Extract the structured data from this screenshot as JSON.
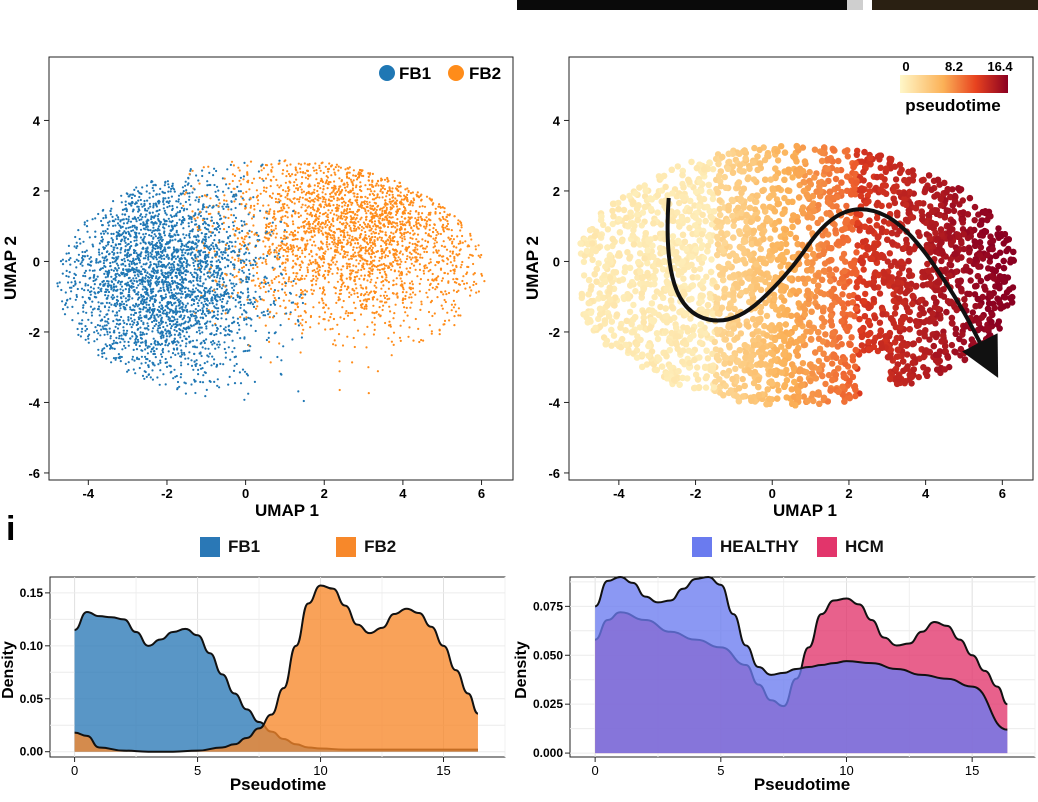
{
  "panel_label": "i",
  "chart_data": [
    {
      "id": "umap_clusters",
      "type": "scatter",
      "xlabel": "UMAP 1",
      "ylabel": "UMAP 2",
      "xlim": [
        -5,
        6.8
      ],
      "ylim": [
        -6.2,
        5.8
      ],
      "xticks": [
        -4,
        -2,
        0,
        2,
        4,
        6
      ],
      "yticks": [
        -6,
        -4,
        -2,
        0,
        2,
        4
      ],
      "legend": [
        {
          "name": "FB1",
          "color": "#1f77b4"
        },
        {
          "name": "FB2",
          "color": "#ff8c1a"
        }
      ],
      "series": [
        {
          "name": "FB1",
          "color": "#1f77b4",
          "center": [
            -2.2,
            -0.5
          ],
          "spread": [
            1.3,
            1.6
          ],
          "approx_points": 3000
        },
        {
          "name": "FB2",
          "color": "#ff8c1a",
          "center": [
            3.0,
            1.0
          ],
          "spread": [
            1.8,
            1.4
          ],
          "approx_points": 2600
        }
      ]
    },
    {
      "id": "umap_pseudotime",
      "type": "scatter",
      "xlabel": "UMAP 1",
      "ylabel": "UMAP 2",
      "xlim": [
        -5.3,
        6.8
      ],
      "ylim": [
        -6.2,
        5.8
      ],
      "xticks": [
        -4,
        -2,
        0,
        2,
        4,
        6
      ],
      "yticks": [
        -6,
        -4,
        -2,
        0,
        2,
        4
      ],
      "colorbar": {
        "title": "pseudotime",
        "ticks": [
          "0",
          "8.2",
          "16.4"
        ],
        "min": 0,
        "max": 16.4,
        "colors": [
          "#fff7c8",
          "#fbb157",
          "#e8431f",
          "#8b0021"
        ]
      },
      "trajectory": [
        [
          -2.7,
          1.8
        ],
        [
          -2.8,
          0.2
        ],
        [
          -2.3,
          -1.5
        ],
        [
          -1.0,
          -1.8
        ],
        [
          0.4,
          -0.4
        ],
        [
          1.4,
          1.2
        ],
        [
          2.4,
          1.6
        ],
        [
          3.5,
          1.0
        ],
        [
          4.8,
          -1.0
        ],
        [
          5.7,
          -2.9
        ]
      ]
    },
    {
      "id": "density_cluster",
      "type": "area",
      "xlabel": "Pseudotime",
      "ylabel": "Density",
      "xlim": [
        -1,
        17.5
      ],
      "ylim": [
        -0.005,
        0.165
      ],
      "xticks": [
        0,
        5,
        10,
        15
      ],
      "yticks": [
        0.0,
        0.05,
        0.1,
        0.15
      ],
      "ytick_labels": [
        "0.00",
        "0.05",
        "0.10",
        "0.15"
      ],
      "legend": [
        {
          "name": "FB1",
          "color": "#2a78b6"
        },
        {
          "name": "FB2",
          "color": "#f7882a"
        }
      ],
      "series": [
        {
          "name": "FB1",
          "color": "#2a78b6",
          "x": [
            0,
            0.5,
            1,
            1.5,
            2,
            2.5,
            3,
            3.5,
            4,
            4.5,
            5,
            5.5,
            6,
            6.5,
            7,
            7.5,
            8,
            8.5,
            9,
            9.5,
            10,
            11,
            12,
            13,
            14,
            15,
            16.4
          ],
          "y": [
            0.115,
            0.132,
            0.128,
            0.127,
            0.125,
            0.113,
            0.1,
            0.106,
            0.113,
            0.116,
            0.11,
            0.093,
            0.073,
            0.055,
            0.04,
            0.028,
            0.019,
            0.012,
            0.007,
            0.004,
            0.003,
            0.002,
            0.002,
            0.002,
            0.002,
            0.002,
            0.002
          ]
        },
        {
          "name": "FB2",
          "color": "#f7882a",
          "x": [
            0,
            0.5,
            1,
            2,
            3,
            4,
            5,
            6,
            6.5,
            7,
            7.5,
            8,
            8.5,
            9,
            9.5,
            10,
            10.5,
            11,
            11.5,
            12,
            12.5,
            13,
            13.5,
            14,
            14.5,
            15,
            15.5,
            16,
            16.4
          ],
          "y": [
            0.018,
            0.015,
            0.004,
            0.001,
            0.0,
            0.0,
            0.001,
            0.004,
            0.007,
            0.013,
            0.022,
            0.035,
            0.06,
            0.1,
            0.14,
            0.157,
            0.154,
            0.138,
            0.12,
            0.112,
            0.117,
            0.13,
            0.135,
            0.131,
            0.118,
            0.1,
            0.077,
            0.055,
            0.036
          ]
        }
      ]
    },
    {
      "id": "density_condition",
      "type": "area",
      "xlabel": "Pseudotime",
      "ylabel": "Density",
      "xlim": [
        -1,
        17.5
      ],
      "ylim": [
        -0.002,
        0.09
      ],
      "xticks": [
        0,
        5,
        10,
        15
      ],
      "yticks": [
        0.0,
        0.025,
        0.05,
        0.075
      ],
      "ytick_labels": [
        "0.000",
        "0.025",
        "0.050",
        "0.075"
      ],
      "legend": [
        {
          "name": "HEALTHY",
          "color": "#6a7bef"
        },
        {
          "name": "HCM",
          "color": "#e2356b"
        }
      ],
      "series": [
        {
          "name": "HEALTHY",
          "color": "#6a7bef",
          "x": [
            0,
            0.5,
            1,
            1.5,
            2,
            2.5,
            3,
            3.5,
            4,
            4.5,
            5,
            5.5,
            6,
            6.5,
            7,
            7.5,
            8,
            8.5,
            9,
            9.5,
            10,
            11,
            12,
            13,
            14,
            15,
            16.4
          ],
          "y": [
            0.075,
            0.088,
            0.09,
            0.087,
            0.08,
            0.077,
            0.078,
            0.084,
            0.089,
            0.09,
            0.086,
            0.071,
            0.055,
            0.044,
            0.04,
            0.041,
            0.043,
            0.044,
            0.045,
            0.046,
            0.047,
            0.046,
            0.043,
            0.04,
            0.038,
            0.034,
            0.012
          ]
        },
        {
          "name": "HCM",
          "color": "#e2356b",
          "x": [
            0,
            0.5,
            1,
            2,
            3,
            4,
            5,
            6,
            6.5,
            7,
            7.5,
            8,
            8.5,
            9,
            9.5,
            10,
            10.5,
            11,
            11.5,
            12,
            12.5,
            13,
            13.5,
            14,
            14.5,
            15,
            15.5,
            16,
            16.4
          ],
          "y": [
            0.058,
            0.068,
            0.072,
            0.068,
            0.062,
            0.058,
            0.054,
            0.045,
            0.035,
            0.027,
            0.024,
            0.038,
            0.054,
            0.071,
            0.078,
            0.079,
            0.076,
            0.068,
            0.059,
            0.055,
            0.056,
            0.062,
            0.067,
            0.065,
            0.058,
            0.05,
            0.042,
            0.034,
            0.025
          ]
        }
      ]
    }
  ]
}
